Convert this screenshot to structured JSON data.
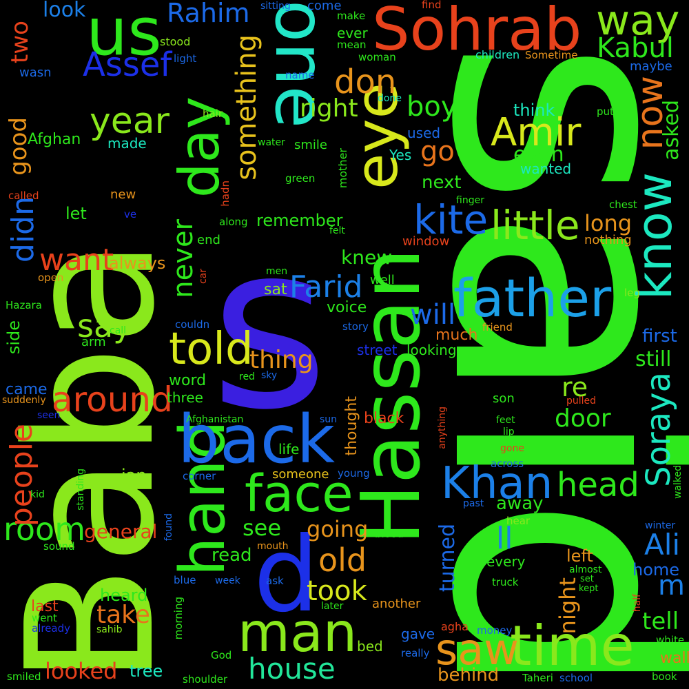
{
  "background": "#000000",
  "words": [
    {
      "text": "said",
      "color": "#2ee81c"
    },
    {
      "text": "s",
      "color": "#3a1fe0"
    },
    {
      "text": "Baba",
      "color": "#8ae81c"
    },
    {
      "text": "Hassan",
      "color": "#2ee81c"
    },
    {
      "text": "one",
      "color": "#22e6c8"
    },
    {
      "text": "eye",
      "color": "#d8e81c"
    },
    {
      "text": "Sohrab",
      "color": "#e8421c"
    },
    {
      "text": "us",
      "color": "#2ee81c"
    },
    {
      "text": "hand",
      "color": "#2ee81c"
    },
    {
      "text": "day",
      "color": "#2ee81c"
    },
    {
      "text": "back",
      "color": "#1c6ae8"
    },
    {
      "text": "father",
      "color": "#1ca0e8"
    },
    {
      "text": "d",
      "color": "#1c30e8"
    },
    {
      "text": "know",
      "color": "#1ce8c0"
    },
    {
      "text": "face",
      "color": "#2ee81c"
    },
    {
      "text": "man",
      "color": "#8ae81c"
    },
    {
      "text": "time",
      "color": "#8ae81c"
    },
    {
      "text": "saw",
      "color": "#e8941c"
    },
    {
      "text": "Amir",
      "color": "#d8e81c"
    },
    {
      "text": "way",
      "color": "#8ae81c"
    },
    {
      "text": "Kabul",
      "color": "#2ee81c"
    },
    {
      "text": "Rahim",
      "color": "#1c6ae8"
    },
    {
      "text": "Assef",
      "color": "#1c30e8"
    },
    {
      "text": "now",
      "color": "#e8741c"
    },
    {
      "text": "year",
      "color": "#8ae81c"
    },
    {
      "text": "something",
      "color": "#e8c21c"
    },
    {
      "text": "don",
      "color": "#e8941c"
    },
    {
      "text": "right",
      "color": "#8ae81c"
    },
    {
      "text": "boy",
      "color": "#2ee81c"
    },
    {
      "text": "kite",
      "color": "#1c6ae8"
    },
    {
      "text": "little",
      "color": "#8ae81c"
    },
    {
      "text": "Farid",
      "color": "#1c80e8"
    },
    {
      "text": "never",
      "color": "#2ee81c"
    },
    {
      "text": "told",
      "color": "#d8e81c"
    },
    {
      "text": "say",
      "color": "#8ae81c"
    },
    {
      "text": "around",
      "color": "#e8421c"
    },
    {
      "text": "want",
      "color": "#e8421c"
    },
    {
      "text": "didn",
      "color": "#1c6ae8"
    },
    {
      "text": "Khan",
      "color": "#1c80e8"
    },
    {
      "text": "head",
      "color": "#2ee81c"
    },
    {
      "text": "Soraya",
      "color": "#1ce8c0"
    },
    {
      "text": "house",
      "color": "#22e69a"
    },
    {
      "text": "room",
      "color": "#2ee81c"
    },
    {
      "text": "people",
      "color": "#e8421c"
    },
    {
      "text": "old",
      "color": "#e8941c"
    },
    {
      "text": "took",
      "color": "#d8e81c"
    },
    {
      "text": "looked",
      "color": "#e8421c"
    },
    {
      "text": "general",
      "color": "#e8421c"
    },
    {
      "text": "two",
      "color": "#e8421c"
    },
    {
      "text": "look",
      "color": "#1c80e8"
    },
    {
      "text": "good",
      "color": "#e8941c"
    },
    {
      "text": "Ali",
      "color": "#1c80e8"
    },
    {
      "text": "m",
      "color": "#1c80e8"
    },
    {
      "text": "tell",
      "color": "#2ee81c"
    },
    {
      "text": "still",
      "color": "#2ee81c"
    },
    {
      "text": "first",
      "color": "#1c6ae8"
    },
    {
      "text": "ll",
      "color": "#1c80e8"
    },
    {
      "text": "re",
      "color": "#8ae81c"
    },
    {
      "text": "door",
      "color": "#2ee81c"
    },
    {
      "text": "will",
      "color": "#1c6ae8"
    },
    {
      "text": "go",
      "color": "#e8741c"
    },
    {
      "text": "next",
      "color": "#2ee81c"
    },
    {
      "text": "long",
      "color": "#e8941c"
    },
    {
      "text": "asked",
      "color": "#2ee81c"
    },
    {
      "text": "even",
      "color": "#2ee81c"
    },
    {
      "text": "think",
      "color": "#1ce8c0"
    },
    {
      "text": "wanted",
      "color": "#1ce8c0"
    },
    {
      "text": "thing",
      "color": "#e8941c"
    },
    {
      "text": "knew",
      "color": "#2ee81c"
    },
    {
      "text": "remember",
      "color": "#2ee81c"
    },
    {
      "text": "always",
      "color": "#e8941c"
    },
    {
      "text": "see",
      "color": "#2ee81c"
    },
    {
      "text": "going",
      "color": "#e8941c"
    },
    {
      "text": "read",
      "color": "#2ee81c"
    },
    {
      "text": "take",
      "color": "#e8741c"
    },
    {
      "text": "heard",
      "color": "#2ee81c"
    },
    {
      "text": "night",
      "color": "#e8941c"
    },
    {
      "text": "turned",
      "color": "#1c6ae8"
    },
    {
      "text": "away",
      "color": "#2ee81c"
    },
    {
      "text": "left",
      "color": "#e8941c"
    },
    {
      "text": "home",
      "color": "#1c6ae8"
    },
    {
      "text": "every",
      "color": "#2ee81c"
    },
    {
      "text": "son",
      "color": "#2ee81c"
    },
    {
      "text": "word",
      "color": "#2ee81c"
    },
    {
      "text": "three",
      "color": "#2ee81c"
    },
    {
      "text": "came",
      "color": "#1c6ae8"
    },
    {
      "text": "side",
      "color": "#2ee81c"
    },
    {
      "text": "life",
      "color": "#2ee81c"
    },
    {
      "text": "jan",
      "color": "#8ae81c"
    },
    {
      "text": "someone",
      "color": "#e8c21c"
    },
    {
      "text": "thought",
      "color": "#e8941c"
    },
    {
      "text": "black",
      "color": "#e8421c"
    },
    {
      "text": "last",
      "color": "#e8421c"
    },
    {
      "text": "tree",
      "color": "#1ce8c0"
    },
    {
      "text": "behind",
      "color": "#e8941c"
    },
    {
      "text": "gave",
      "color": "#1c6ae8"
    },
    {
      "text": "bed",
      "color": "#8ae81c"
    },
    {
      "text": "wall",
      "color": "#e8741c"
    },
    {
      "text": "voice",
      "color": "#2ee81c"
    },
    {
      "text": "sat",
      "color": "#8ae81c"
    },
    {
      "text": "well",
      "color": "#2ee81c"
    },
    {
      "text": "much",
      "color": "#e8741c"
    },
    {
      "text": "street",
      "color": "#1c30e8"
    },
    {
      "text": "looking",
      "color": "#2ee81c"
    },
    {
      "text": "another",
      "color": "#e8941c"
    },
    {
      "text": "agha",
      "color": "#e8421c"
    },
    {
      "text": "let",
      "color": "#2ee81c"
    },
    {
      "text": "new",
      "color": "#e8941c"
    },
    {
      "text": "end",
      "color": "#2ee81c"
    },
    {
      "text": "arm",
      "color": "#2ee81c"
    },
    {
      "text": "Afghan",
      "color": "#2ee81c"
    },
    {
      "text": "made",
      "color": "#1ce8c0"
    },
    {
      "text": "smile",
      "color": "#2ee81c"
    },
    {
      "text": "used",
      "color": "#1c6ae8"
    },
    {
      "text": "Yes",
      "color": "#1ce8c0"
    },
    {
      "text": "mother",
      "color": "#2ee81c"
    },
    {
      "text": "ever",
      "color": "#2ee81c"
    },
    {
      "text": "come",
      "color": "#1c6ae8"
    },
    {
      "text": "children",
      "color": "#1ce8c0"
    },
    {
      "text": "maybe",
      "color": "#1c6ae8"
    },
    {
      "text": "Sometime",
      "color": "#e8941c"
    },
    {
      "text": "window",
      "color": "#e8421c"
    },
    {
      "text": "nothing",
      "color": "#e8941c"
    },
    {
      "text": "young",
      "color": "#1c6ae8"
    },
    {
      "text": "wasn",
      "color": "#1c6ae8"
    },
    {
      "text": "stood",
      "color": "#8ae81c"
    },
    {
      "text": "light",
      "color": "#1c6ae8"
    },
    {
      "text": "sitting",
      "color": "#1c6ae8"
    },
    {
      "text": "make",
      "color": "#2ee81c"
    },
    {
      "text": "mean",
      "color": "#2ee81c"
    },
    {
      "text": "find",
      "color": "#e8421c"
    },
    {
      "text": "woman",
      "color": "#2ee81c"
    },
    {
      "text": "name",
      "color": "#1c6ae8"
    },
    {
      "text": "done",
      "color": "#1ce8c0"
    },
    {
      "text": "hair",
      "color": "#8ae81c"
    },
    {
      "text": "put",
      "color": "#2ee81c"
    },
    {
      "text": "water",
      "color": "#2ee81c"
    },
    {
      "text": "green",
      "color": "#2ee81c"
    },
    {
      "text": "called",
      "color": "#e8421c"
    },
    {
      "text": "ve",
      "color": "#1c30e8"
    },
    {
      "text": "along",
      "color": "#2ee81c"
    },
    {
      "text": "hadn",
      "color": "#e8421c"
    },
    {
      "text": "felt",
      "color": "#2ee81c"
    },
    {
      "text": "finger",
      "color": "#2ee81c"
    },
    {
      "text": "chest",
      "color": "#2ee81c"
    },
    {
      "text": "open",
      "color": "#e8941c"
    },
    {
      "text": "car",
      "color": "#e8421c"
    },
    {
      "text": "men",
      "color": "#2ee81c"
    },
    {
      "text": "Hazara",
      "color": "#2ee81c"
    },
    {
      "text": "couldn",
      "color": "#1c6ae8"
    },
    {
      "text": "call",
      "color": "#2ee81c"
    },
    {
      "text": "story",
      "color": "#1c6ae8"
    },
    {
      "text": "friend",
      "color": "#e8941c"
    },
    {
      "text": "leg",
      "color": "#8ae81c"
    },
    {
      "text": "red",
      "color": "#2ee81c"
    },
    {
      "text": "sky",
      "color": "#1c6ae8"
    },
    {
      "text": "suddenly",
      "color": "#e8941c"
    },
    {
      "text": "seen",
      "color": "#1c30e8"
    },
    {
      "text": "Afghanistan",
      "color": "#2ee81c"
    },
    {
      "text": "sun",
      "color": "#1c6ae8"
    },
    {
      "text": "anything",
      "color": "#e8421c"
    },
    {
      "text": "pulled",
      "color": "#e8421c"
    },
    {
      "text": "feet",
      "color": "#2ee81c"
    },
    {
      "text": "lip",
      "color": "#2ee81c"
    },
    {
      "text": "gone",
      "color": "#e8421c"
    },
    {
      "text": "across",
      "color": "#1c6ae8"
    },
    {
      "text": "corner",
      "color": "#1c6ae8"
    },
    {
      "text": "standing",
      "color": "#2ee81c"
    },
    {
      "text": "kid",
      "color": "#2ee81c"
    },
    {
      "text": "past",
      "color": "#1c6ae8"
    },
    {
      "text": "hear",
      "color": "#8ae81c"
    },
    {
      "text": "walked",
      "color": "#2ee81c"
    },
    {
      "text": "winter",
      "color": "#1c6ae8"
    },
    {
      "text": "found",
      "color": "#1c6ae8"
    },
    {
      "text": "sound",
      "color": "#2ee81c"
    },
    {
      "text": "mouth",
      "color": "#e8941c"
    },
    {
      "text": "blood",
      "color": "#2ee81c"
    },
    {
      "text": "almost",
      "color": "#2ee81c"
    },
    {
      "text": "set",
      "color": "#2ee81c"
    },
    {
      "text": "kept",
      "color": "#2ee81c"
    },
    {
      "text": "blue",
      "color": "#1c6ae8"
    },
    {
      "text": "week",
      "color": "#1c6ae8"
    },
    {
      "text": "ask",
      "color": "#1c6ae8"
    },
    {
      "text": "truck",
      "color": "#2ee81c"
    },
    {
      "text": "half",
      "color": "#e8421c"
    },
    {
      "text": "went",
      "color": "#2ee81c"
    },
    {
      "text": "already",
      "color": "#1c30e8"
    },
    {
      "text": "sahib",
      "color": "#8ae81c"
    },
    {
      "text": "morning",
      "color": "#2ee81c"
    },
    {
      "text": "later",
      "color": "#2ee81c"
    },
    {
      "text": "money",
      "color": "#1c6ae8"
    },
    {
      "text": "white",
      "color": "#2ee81c"
    },
    {
      "text": "God",
      "color": "#2ee81c"
    },
    {
      "text": "really",
      "color": "#1c6ae8"
    },
    {
      "text": "smiled",
      "color": "#2ee81c"
    },
    {
      "text": "shoulder",
      "color": "#2ee81c"
    },
    {
      "text": "Taheri",
      "color": "#2ee81c"
    },
    {
      "text": "school",
      "color": "#1c6ae8"
    },
    {
      "text": "book",
      "color": "#2ee81c"
    }
  ]
}
